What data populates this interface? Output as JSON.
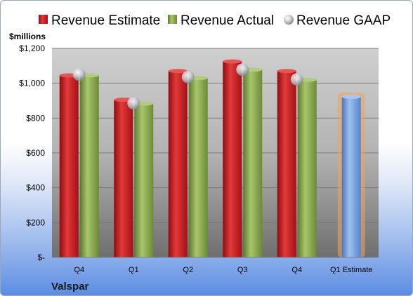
{
  "chart_data": {
    "type": "bar",
    "unit_label": "$millions",
    "company": "Valspar",
    "categories": [
      "Q4",
      "Q1",
      "Q2",
      "Q3",
      "Q4",
      "Q1 Estimate"
    ],
    "series": [
      {
        "name": "Revenue Estimate",
        "values": [
          1045,
          905,
          1070,
          1125,
          1070,
          null
        ]
      },
      {
        "name": "Revenue Actual",
        "values": [
          1045,
          883,
          1030,
          1078,
          1020,
          922
        ]
      },
      {
        "name": "Revenue GAAP",
        "values": [
          1050,
          885,
          1035,
          1078,
          1022,
          null
        ]
      }
    ],
    "ylim": [
      0,
      1200
    ],
    "yticks": [
      0,
      200,
      400,
      600,
      800,
      1000,
      1200
    ],
    "ytick_labels": [
      "$-",
      "$200",
      "$400",
      "$600",
      "$800",
      "$1,000",
      "$1,200"
    ],
    "legend_position": "top",
    "grid": true,
    "colors": {
      "estimate": "#c8151b",
      "actual": "#7e9e45",
      "gaap": "#c4c8d0",
      "forecast": "#6d9bd8",
      "forecast_glow": "#f2a25a"
    }
  }
}
